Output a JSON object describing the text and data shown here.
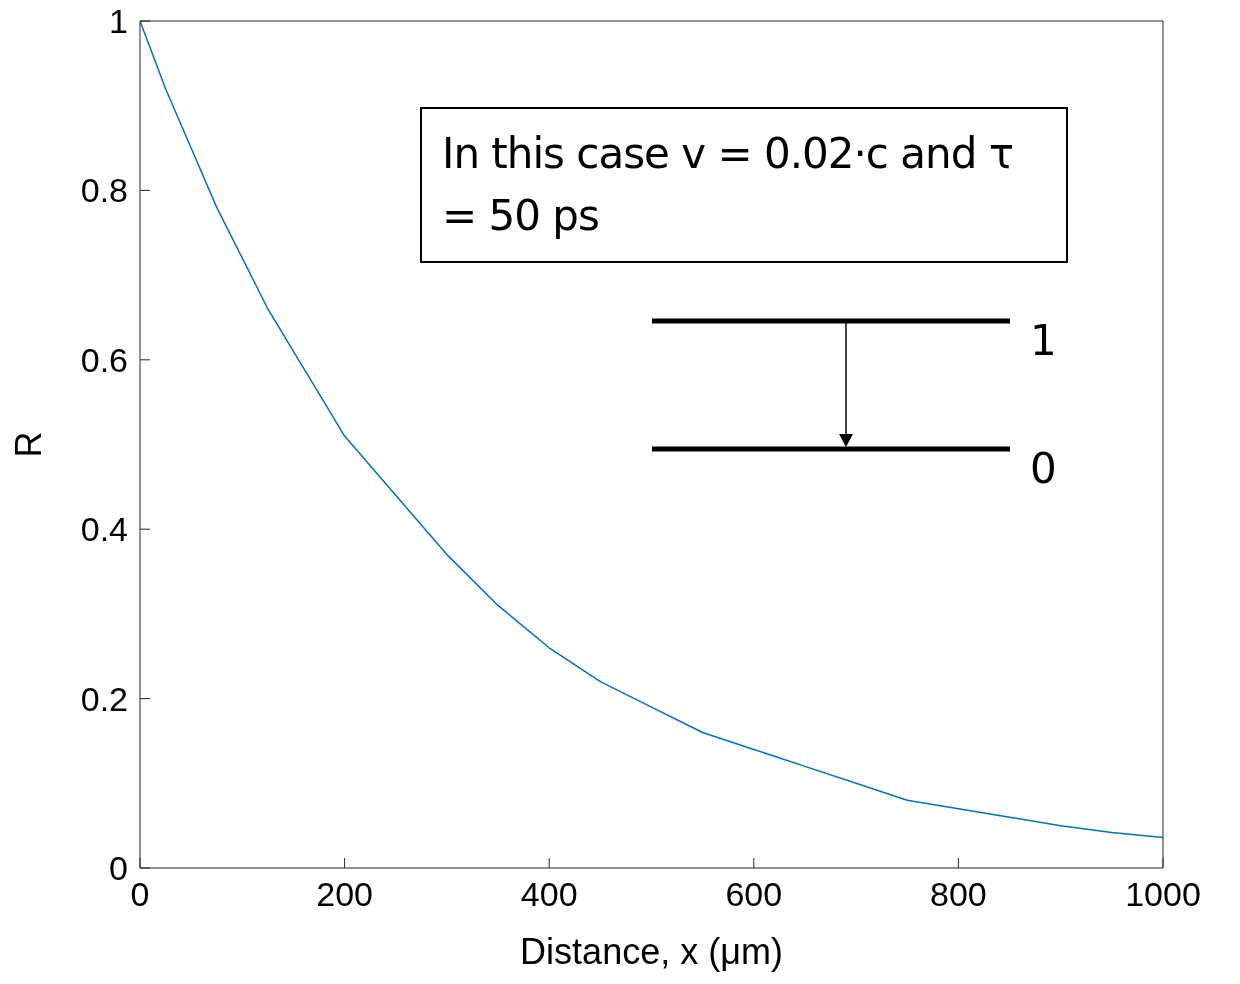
{
  "chart_data": {
    "type": "line",
    "xlabel": "Distance, x (μm)",
    "ylabel": "R",
    "x": [
      0,
      25,
      50,
      75,
      100,
      125,
      150,
      175,
      200,
      250,
      300,
      350,
      400,
      450,
      500,
      550,
      600,
      650,
      700,
      750,
      800,
      850,
      900,
      950,
      1000
    ],
    "series": [
      {
        "color": "#0072bd",
        "values": [
          1,
          0.92,
          0.85,
          0.78,
          0.72,
          0.66,
          0.61,
          0.56,
          0.51,
          0.44,
          0.37,
          0.31,
          0.26,
          0.22,
          0.19,
          0.16,
          0.14,
          0.12,
          0.1,
          0.08,
          0.07,
          0.06,
          0.05,
          0.042,
          0.036
        ]
      }
    ],
    "xlim": [
      0,
      1000
    ],
    "xticks": [
      0,
      200,
      400,
      600,
      800,
      1000
    ],
    "ylim": [
      0,
      1
    ],
    "yticks": [
      0,
      0.2,
      0.4,
      0.6,
      0.8,
      1
    ],
    "marker": "none",
    "line_style": "solid",
    "annotations": [
      "In this case v = 0.02·c and τ = 50 ps",
      "1",
      "0"
    ]
  }
}
